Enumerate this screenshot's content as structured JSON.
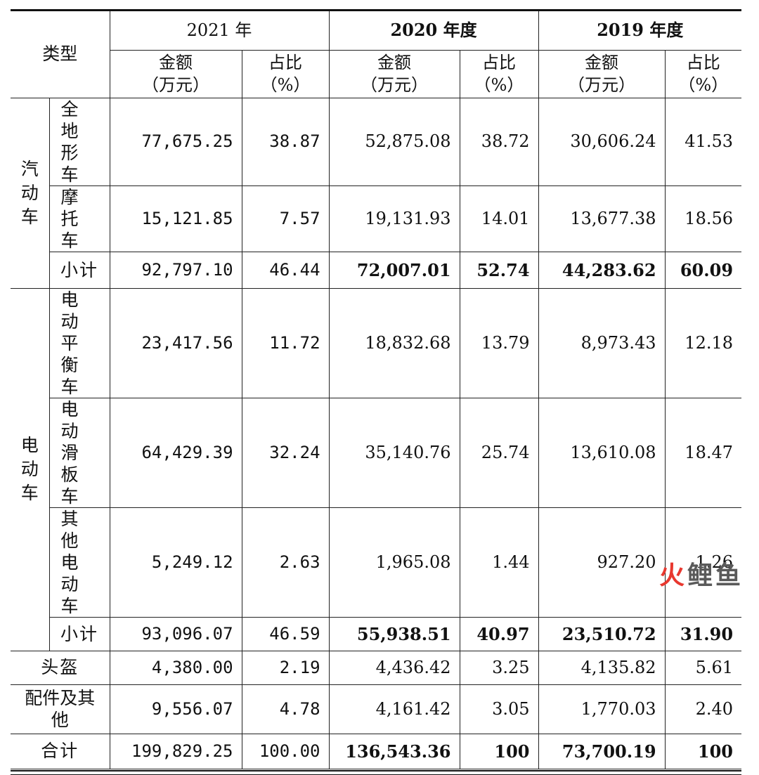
{
  "header": {
    "type_label": "类型",
    "years": [
      "2021 年",
      "2020 年度",
      "2019 年度"
    ],
    "amount_label_1": "金额",
    "amount_label_2": "（万元）",
    "ratio_label_1": "占比",
    "ratio_label_2": "（%）"
  },
  "groups": {
    "fuel": "汽\n动\n车",
    "electric": "电\n动\n车"
  },
  "rows": [
    {
      "name": "全地\n形车",
      "v": [
        "77,675.25",
        "38.87",
        "52,875.08",
        "38.72",
        "30,606.24",
        "41.53"
      ]
    },
    {
      "name": "摩托\n车",
      "v": [
        "15,121.85",
        "7.57",
        "19,131.93",
        "14.01",
        "13,677.38",
        "18.56"
      ]
    },
    {
      "name": "小计",
      "v": [
        "92,797.10",
        "46.44",
        "72,007.01",
        "52.74",
        "44,283.62",
        "60.09"
      ]
    },
    {
      "name": "电动\n平衡\n车",
      "v": [
        "23,417.56",
        "11.72",
        "18,832.68",
        "13.79",
        "8,973.43",
        "12.18"
      ]
    },
    {
      "name": "电动\n滑板\n车",
      "v": [
        "64,429.39",
        "32.24",
        "35,140.76",
        "25.74",
        "13,610.08",
        "18.47"
      ]
    },
    {
      "name": "其他\n电动\n车",
      "v": [
        "5,249.12",
        "2.63",
        "1,965.08",
        "1.44",
        "927.20",
        "1.26"
      ]
    },
    {
      "name": "小计",
      "v": [
        "93,096.07",
        "46.59",
        "55,938.51",
        "40.97",
        "23,510.72",
        "31.90"
      ]
    },
    {
      "name": "头盔",
      "v": [
        "4,380.00",
        "2.19",
        "4,436.42",
        "3.25",
        "4,135.82",
        "5.61"
      ]
    },
    {
      "name": "配件及其\n他",
      "v": [
        "9,556.07",
        "4.78",
        "4,161.42",
        "3.05",
        "1,770.03",
        "2.40"
      ]
    },
    {
      "name": "合计",
      "v": [
        "199,829.25",
        "100.00",
        "136,543.36",
        "100",
        "73,700.19",
        "100"
      ]
    }
  ],
  "watermark": {
    "fire": "火",
    "rest": "鲤鱼"
  }
}
